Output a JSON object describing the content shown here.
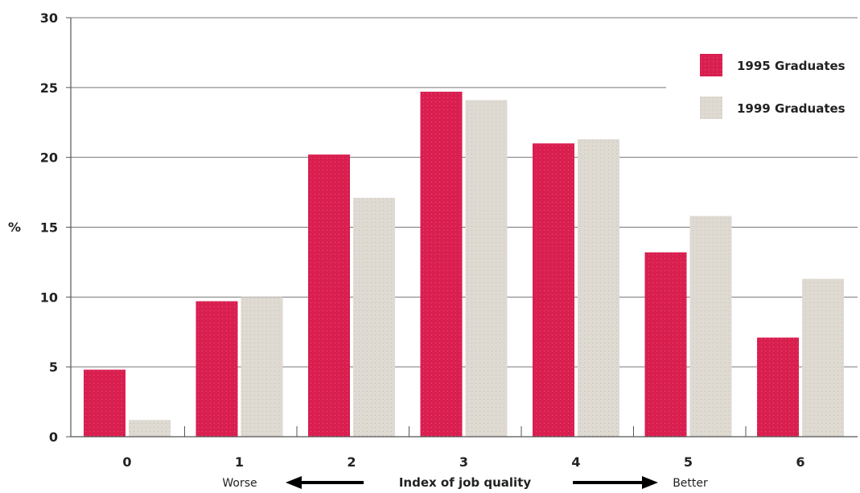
{
  "chart_data": {
    "type": "bar",
    "title": "",
    "xlabel": "Index of job quality",
    "ylabel": "%",
    "categories": [
      "0",
      "1",
      "2",
      "3",
      "4",
      "5",
      "6"
    ],
    "series": [
      {
        "name": "1995 Graduates",
        "color": "#d91f4f",
        "values": [
          4.8,
          9.7,
          20.2,
          24.7,
          21.0,
          13.2,
          7.1
        ]
      },
      {
        "name": "1999 Graduates",
        "color": "#dedad2",
        "values": [
          1.2,
          10.0,
          17.1,
          24.1,
          21.3,
          15.8,
          11.3
        ]
      }
    ],
    "ylim": [
      0,
      30
    ],
    "yticks": [
      0,
      5,
      10,
      15,
      20,
      25,
      30
    ],
    "grid": true,
    "legend_position": "top-right",
    "axis_annotations": {
      "left": "Worse",
      "right": "Better"
    }
  }
}
